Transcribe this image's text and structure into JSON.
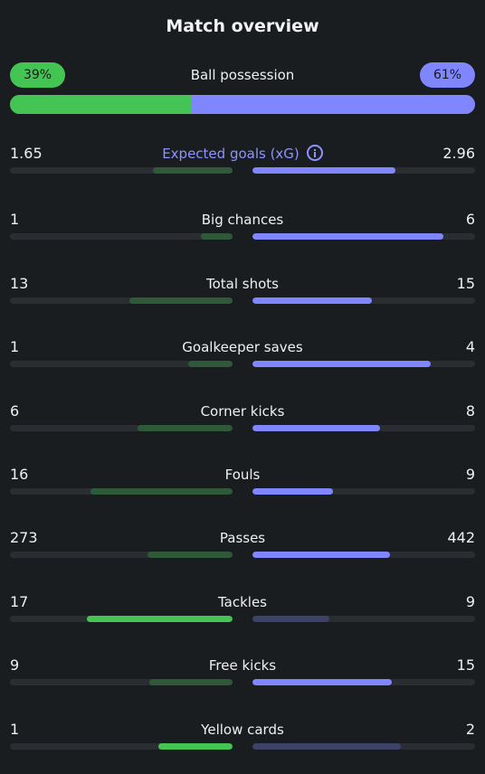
{
  "title": "Match overview",
  "possession": {
    "label": "Ball possession",
    "home": "39%",
    "away": "61%",
    "home_fraction": 0.39
  },
  "colors": {
    "home_strong": "#44c553",
    "home_weak": "#2f5a3a",
    "away_strong": "#7f86ff",
    "away_weak": "#3c4268",
    "accent": "#8d93ff"
  },
  "stats": [
    {
      "label": "Expected goals (xG)",
      "home": "1.65",
      "away": "2.96",
      "home_num": 1.65,
      "away_num": 2.96,
      "highlight": "away",
      "icon": "info-icon",
      "accent": true
    },
    {
      "label": "Big chances",
      "home": "1",
      "away": "6",
      "home_num": 1,
      "away_num": 6,
      "highlight": "away"
    },
    {
      "label": "Total shots",
      "home": "13",
      "away": "15",
      "home_num": 13,
      "away_num": 15,
      "highlight": "away"
    },
    {
      "label": "Goalkeeper saves",
      "home": "1",
      "away": "4",
      "home_num": 1,
      "away_num": 4,
      "highlight": "away"
    },
    {
      "label": "Corner kicks",
      "home": "6",
      "away": "8",
      "home_num": 6,
      "away_num": 8,
      "highlight": "away"
    },
    {
      "label": "Fouls",
      "home": "16",
      "away": "9",
      "home_num": 16,
      "away_num": 9,
      "highlight": "away"
    },
    {
      "label": "Passes",
      "home": "273",
      "away": "442",
      "home_num": 273,
      "away_num": 442,
      "highlight": "away"
    },
    {
      "label": "Tackles",
      "home": "17",
      "away": "9",
      "home_num": 17,
      "away_num": 9,
      "highlight": "home"
    },
    {
      "label": "Free kicks",
      "home": "9",
      "away": "15",
      "home_num": 9,
      "away_num": 15,
      "highlight": "away"
    },
    {
      "label": "Yellow cards",
      "home": "1",
      "away": "2",
      "home_num": 1,
      "away_num": 2,
      "highlight": "home"
    }
  ]
}
